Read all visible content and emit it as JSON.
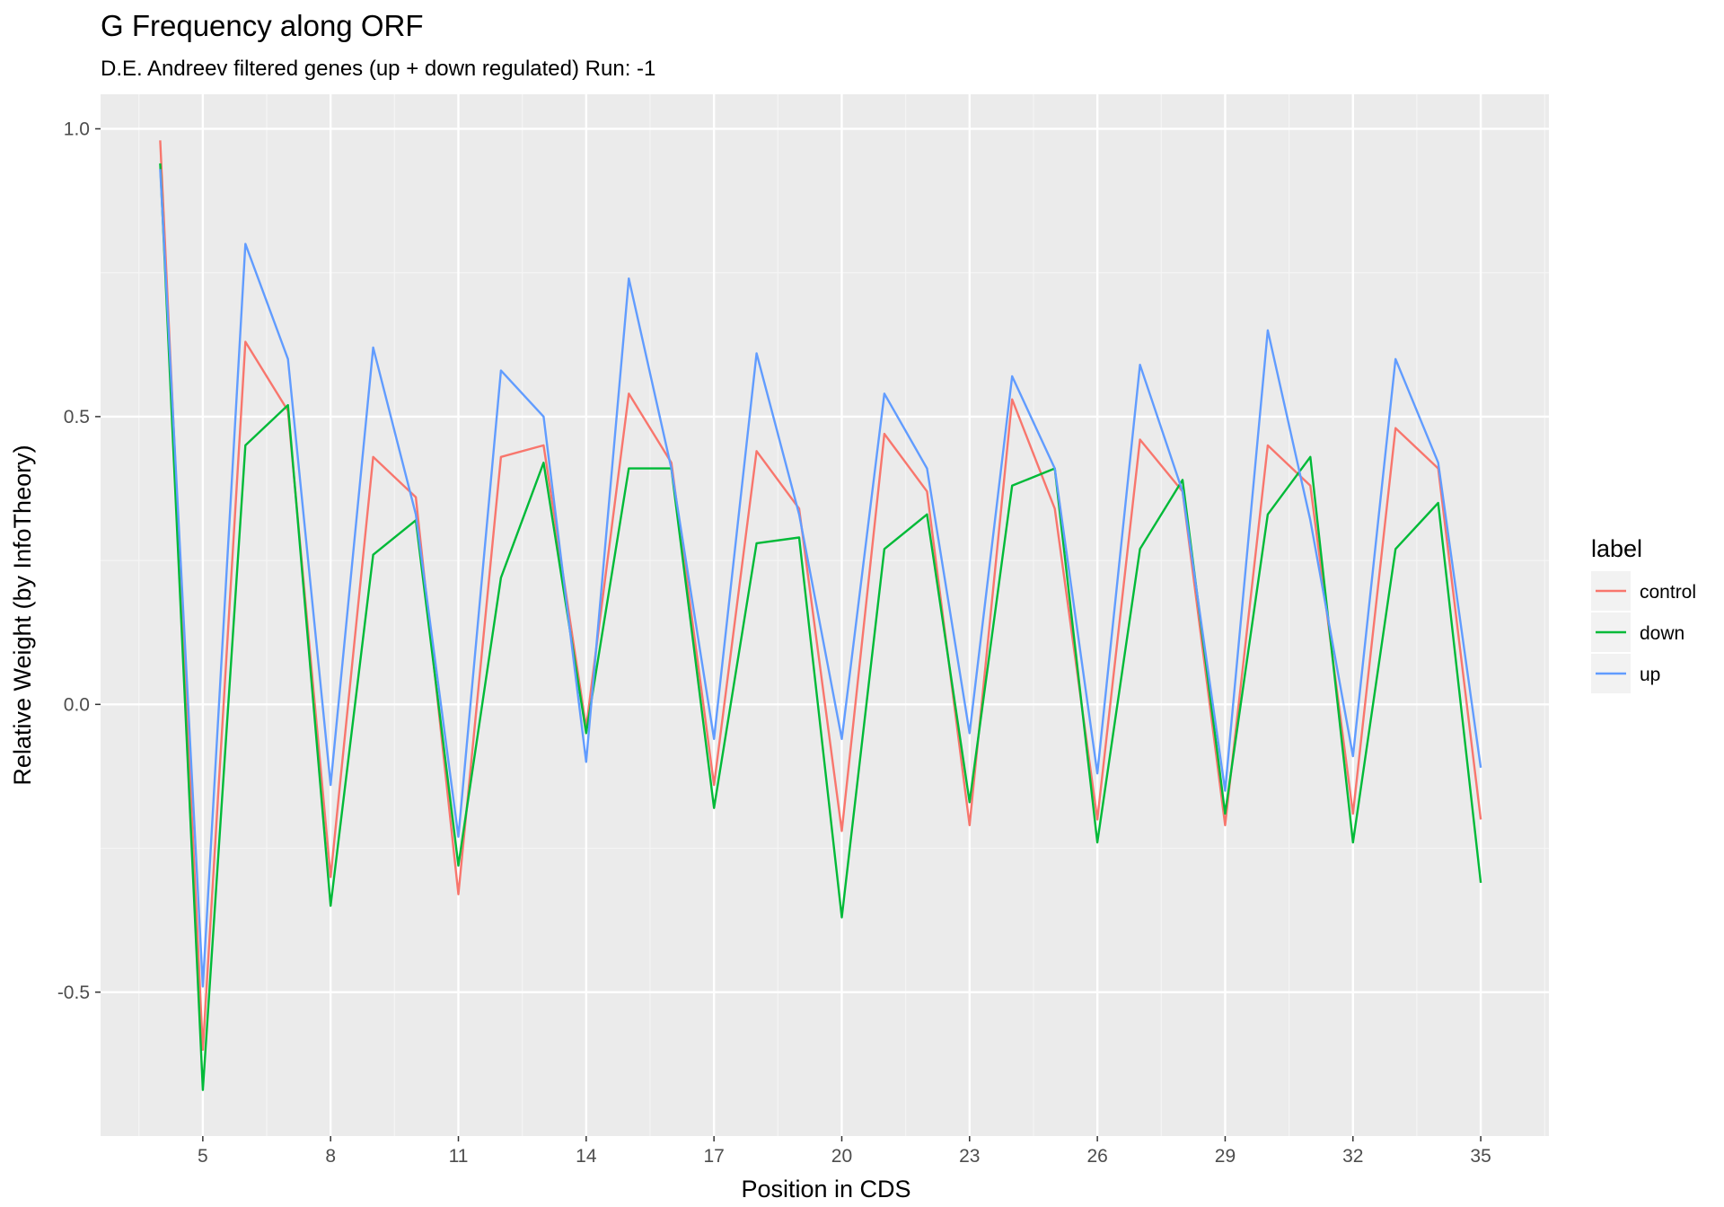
{
  "chart_data": {
    "type": "line",
    "title": "G Frequency along ORF",
    "subtitle": "D.E. Andreev filtered genes (up + down regulated) Run: -1",
    "xlabel": "Position in CDS",
    "ylabel": "Relative Weight (by InfoTheory)",
    "xlim": [
      2.6,
      36.6
    ],
    "ylim": [
      -0.75,
      1.06
    ],
    "x_ticks": [
      5,
      8,
      11,
      14,
      17,
      20,
      23,
      26,
      29,
      32,
      35
    ],
    "x_tick_labels": [
      "5",
      "8",
      "11",
      "14",
      "17",
      "20",
      "23",
      "26",
      "29",
      "32",
      "35"
    ],
    "y_ticks": [
      -0.5,
      0.0,
      0.5,
      1.0
    ],
    "y_tick_labels": [
      "-0.5",
      "0.0",
      "0.5",
      "1.0"
    ],
    "grid": true,
    "legend": {
      "title": "label",
      "position": "right"
    },
    "x": [
      4,
      5,
      6,
      7,
      8,
      9,
      10,
      11,
      12,
      13,
      14,
      15,
      16,
      17,
      18,
      19,
      20,
      21,
      22,
      23,
      24,
      25,
      26,
      27,
      28,
      29,
      30,
      31,
      32,
      33,
      34,
      35
    ],
    "series": [
      {
        "name": "control",
        "color": "#F8766D",
        "values": [
          0.98,
          -0.6,
          0.63,
          0.51,
          -0.3,
          0.43,
          0.36,
          -0.33,
          0.43,
          0.45,
          -0.04,
          0.54,
          0.42,
          -0.14,
          0.44,
          0.34,
          -0.22,
          0.47,
          0.37,
          -0.21,
          0.53,
          0.34,
          -0.2,
          0.46,
          0.37,
          -0.21,
          0.45,
          0.38,
          -0.19,
          0.48,
          0.41,
          -0.2
        ]
      },
      {
        "name": "down",
        "color": "#00BA38",
        "values": [
          0.94,
          -0.67,
          0.45,
          0.52,
          -0.35,
          0.26,
          0.32,
          -0.28,
          0.22,
          0.42,
          -0.05,
          0.41,
          0.41,
          -0.18,
          0.28,
          0.29,
          -0.37,
          0.27,
          0.33,
          -0.17,
          0.38,
          0.41,
          -0.24,
          0.27,
          0.39,
          -0.19,
          0.33,
          0.43,
          -0.24,
          0.27,
          0.35,
          -0.31
        ]
      },
      {
        "name": "up",
        "color": "#619CFF",
        "values": [
          0.93,
          -0.49,
          0.8,
          0.6,
          -0.14,
          0.62,
          0.33,
          -0.23,
          0.58,
          0.5,
          -0.1,
          0.74,
          0.41,
          -0.06,
          0.61,
          0.33,
          -0.06,
          0.54,
          0.41,
          -0.05,
          0.57,
          0.41,
          -0.12,
          0.59,
          0.37,
          -0.15,
          0.65,
          0.32,
          -0.09,
          0.6,
          0.42,
          -0.11
        ]
      }
    ]
  }
}
